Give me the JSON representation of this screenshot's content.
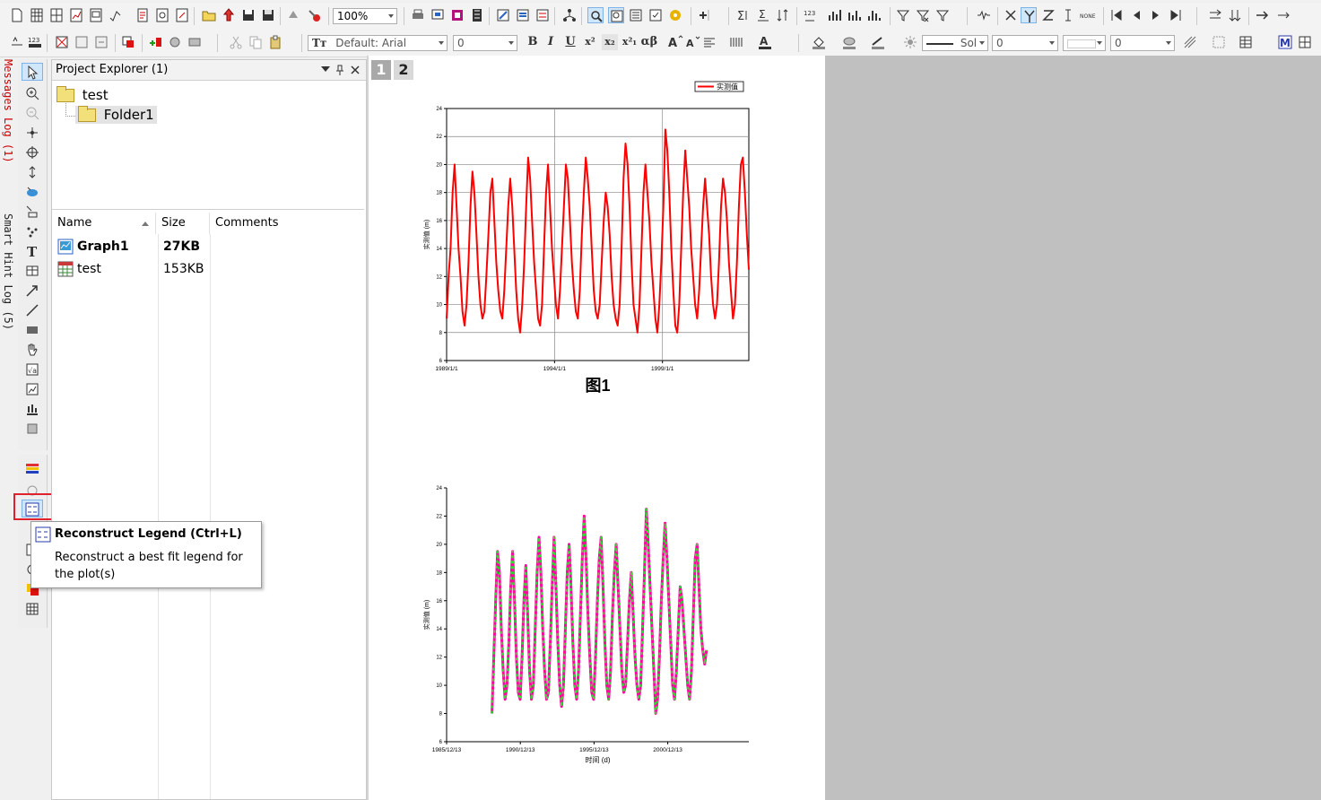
{
  "toolbar": {
    "zoom": "100%",
    "font": "Default: Arial",
    "font_size": "0",
    "line_style": "Sol",
    "line_width": "0",
    "other_value": "0",
    "text_buttons": [
      "B",
      "I",
      "U",
      "x²",
      "x₂",
      "x²₁",
      "αβ"
    ]
  },
  "docked": {
    "messages_log": "Messages Log (1)",
    "smart_hint_log": "Smart Hint Log (5)"
  },
  "project_explorer": {
    "title": "Project Explorer (1)",
    "tree": [
      {
        "label": "test",
        "level": 0
      },
      {
        "label": "Folder1",
        "level": 1
      }
    ],
    "columns": {
      "name": "Name",
      "size": "Size",
      "comments": "Comments"
    },
    "items": [
      {
        "name": "Graph1",
        "size": "27KB",
        "comments": "",
        "type": "graph",
        "bold": true
      },
      {
        "name": "test",
        "size": "153KB",
        "comments": "",
        "type": "worksheet",
        "bold": false
      }
    ]
  },
  "graph_tabs": {
    "layer1": "1",
    "layer2": "2"
  },
  "tooltip": {
    "title": "Reconstruct Legend (Ctrl+L)",
    "body": "Reconstruct a best fit legend for the plot(s)"
  },
  "chart_data": [
    {
      "type": "line",
      "title": "图1",
      "legend": "实测值",
      "legend_position": "top-right",
      "ylabel": "实测值 (m)",
      "xlabel": "",
      "ylim": [
        6,
        24
      ],
      "yticks": [
        "6",
        "8",
        "10",
        "12",
        "14",
        "16",
        "18",
        "20",
        "22",
        "24"
      ],
      "xticks": [
        "1989/1/1",
        "1994/1/1",
        "1999/1/1"
      ],
      "grid": true,
      "series": [
        {
          "color": "#ff0000",
          "values": [
            9,
            12,
            14,
            18,
            20,
            17,
            14,
            12,
            9.5,
            8.5,
            10,
            13,
            17,
            19.5,
            18,
            15,
            12,
            10,
            9,
            9.5,
            12,
            15,
            18,
            19,
            16,
            13,
            11,
            9.5,
            9,
            11,
            14,
            17,
            19,
            17,
            14,
            11,
            9,
            8,
            10,
            13,
            17,
            20.5,
            19,
            16,
            13,
            11,
            9,
            8.5,
            10,
            14,
            18,
            20,
            17,
            14,
            12,
            10,
            9,
            11,
            14,
            17,
            20,
            19,
            16,
            13,
            11,
            9.5,
            9,
            11,
            15,
            18,
            20.5,
            19,
            17,
            14,
            11,
            9.5,
            9,
            10,
            13,
            16,
            18,
            17,
            15,
            12,
            10,
            9,
            8.5,
            10,
            14,
            19,
            21.5,
            20,
            17,
            13,
            10,
            9,
            8,
            10,
            14,
            18,
            20,
            18,
            16,
            13,
            11,
            9,
            8,
            10,
            13,
            17,
            22.5,
            21,
            18,
            14,
            11,
            8.5,
            8,
            10,
            14,
            18,
            21,
            19,
            17,
            14,
            12,
            10,
            9,
            11,
            14,
            17,
            19,
            17,
            15,
            12,
            10,
            9,
            10,
            13,
            17,
            19,
            18,
            16,
            13,
            11,
            9,
            10,
            13,
            17,
            20,
            20.5,
            18,
            15,
            12.5
          ]
        }
      ]
    },
    {
      "type": "line",
      "title": "",
      "ylabel": "实测值 (m)",
      "xlabel": "时间 (d)",
      "ylim": [
        6,
        24
      ],
      "yticks": [
        "6",
        "8",
        "10",
        "12",
        "14",
        "16",
        "18",
        "20",
        "22",
        "24"
      ],
      "xticks": [
        "1985/12/13",
        "1990/12/13",
        "1995/12/13",
        "2000/12/13"
      ],
      "grid": false,
      "series": [
        {
          "colors": [
            "#ff00a0",
            "#33dd33"
          ],
          "values": [
            8,
            12,
            16,
            19.5,
            18,
            14,
            11,
            9,
            10,
            13,
            17,
            19.5,
            16,
            12,
            9.5,
            9,
            12,
            16,
            18.5,
            15,
            11,
            9,
            10,
            14,
            18,
            20.5,
            18,
            14,
            11,
            9,
            9.5,
            13,
            17,
            20.5,
            17,
            13,
            10,
            8.5,
            10,
            14,
            18,
            20,
            17,
            13,
            10,
            9,
            11,
            15,
            19,
            22,
            19,
            15,
            12,
            9.5,
            9,
            12,
            16,
            19,
            20.5,
            17,
            13,
            10,
            9,
            11,
            15,
            18,
            20,
            17,
            14,
            11,
            9.5,
            10,
            13,
            16,
            18,
            15,
            12,
            10,
            9,
            10,
            14,
            18,
            22.5,
            20,
            17,
            14,
            11,
            8,
            9,
            12,
            16,
            19,
            21.5,
            19,
            16,
            13,
            10,
            9,
            11,
            14,
            17,
            16,
            14,
            12,
            10,
            9,
            11,
            15,
            19,
            20,
            17,
            14,
            12.5,
            11.5,
            12.5
          ]
        }
      ]
    }
  ]
}
